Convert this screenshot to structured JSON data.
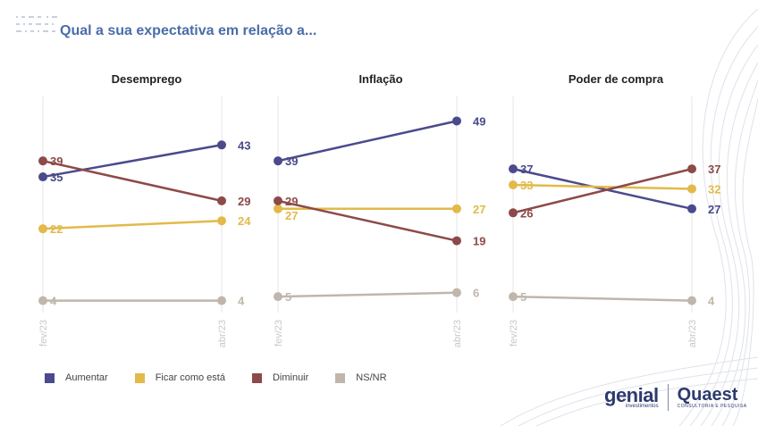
{
  "title": "Qual a sua expectativa em relação a...",
  "colors": {
    "Aumentar": "#4a4a8c",
    "Ficar como está": "#e3b94a",
    "Diminuir": "#8c4a48",
    "NS/NR": "#c0b6ac"
  },
  "legend": [
    "Aumentar",
    "Ficar como está",
    "Diminuir",
    "NS/NR"
  ],
  "logos": {
    "genial": "genial",
    "genial_sub": "investimentos",
    "quaest": "Quaest",
    "quaest_sub": "CONSULTORIA E PESQUISA"
  },
  "chart_data": [
    {
      "type": "line",
      "title": "Desemprego",
      "x": [
        "fev/23",
        "abr/23"
      ],
      "series": [
        {
          "name": "Aumentar",
          "values": [
            35,
            43
          ]
        },
        {
          "name": "Ficar como está",
          "values": [
            22,
            24
          ]
        },
        {
          "name": "Diminuir",
          "values": [
            39,
            29
          ]
        },
        {
          "name": "NS/NR",
          "values": [
            4,
            4
          ]
        }
      ]
    },
    {
      "type": "line",
      "title": "Inflação",
      "x": [
        "fev/23",
        "abr/23"
      ],
      "series": [
        {
          "name": "Aumentar",
          "values": [
            39,
            49
          ]
        },
        {
          "name": "Ficar como está",
          "values": [
            27,
            27
          ]
        },
        {
          "name": "Diminuir",
          "values": [
            29,
            19
          ]
        },
        {
          "name": "NS/NR",
          "values": [
            5,
            6
          ]
        }
      ]
    },
    {
      "type": "line",
      "title": "Poder de compra",
      "x": [
        "fev/23",
        "abr/23"
      ],
      "series": [
        {
          "name": "Aumentar",
          "values": [
            37,
            27
          ]
        },
        {
          "name": "Ficar como está",
          "values": [
            33,
            32
          ]
        },
        {
          "name": "Diminuir",
          "values": [
            26,
            37
          ]
        },
        {
          "name": "NS/NR",
          "values": [
            5,
            4
          ]
        }
      ]
    }
  ]
}
